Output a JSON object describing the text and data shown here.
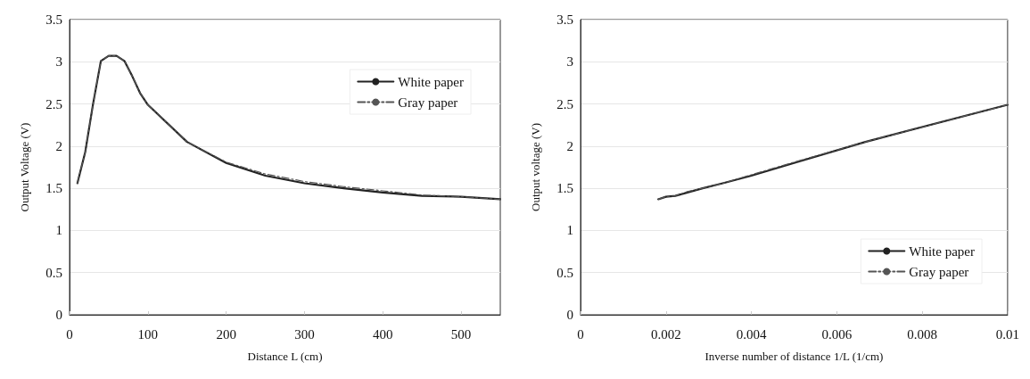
{
  "chart_data": [
    {
      "type": "line",
      "xlabel": "Distance L (cm)",
      "ylabel": "Output Voltage (V)",
      "xlim": [
        0,
        550
      ],
      "xticks": [
        0,
        100,
        200,
        300,
        400,
        500
      ],
      "ylim": [
        0,
        3.5
      ],
      "yticks": [
        0,
        0.5,
        1,
        1.5,
        2,
        2.5,
        3,
        3.5
      ],
      "grid": "y",
      "legend": "top right",
      "marker": "none",
      "series": [
        {
          "name": "White paper",
          "color": "#222222",
          "line_style": "solid",
          "x": [
            10,
            20,
            30,
            40,
            50,
            60,
            70,
            80,
            90,
            100,
            150,
            200,
            250,
            300,
            350,
            400,
            450,
            500,
            550
          ],
          "values": [
            1.56,
            1.93,
            2.5,
            3.01,
            3.07,
            3.07,
            3.01,
            2.83,
            2.63,
            2.49,
            2.05,
            1.8,
            1.65,
            1.56,
            1.5,
            1.45,
            1.41,
            1.4,
            1.37
          ]
        },
        {
          "name": "Gray paper",
          "color": "#555555",
          "line_style": "dashed",
          "x": [
            10,
            20,
            30,
            40,
            50,
            60,
            70,
            80,
            90,
            100,
            150,
            200,
            250,
            300,
            350,
            400,
            450,
            500,
            550
          ],
          "values": [
            1.56,
            1.93,
            2.5,
            3.01,
            3.07,
            3.07,
            3.01,
            2.83,
            2.63,
            2.49,
            2.05,
            1.81,
            1.67,
            1.58,
            1.52,
            1.47,
            1.42,
            1.4,
            1.37
          ]
        }
      ]
    },
    {
      "type": "line",
      "xlabel": "Inverse number of distance 1/L (1/cm)",
      "ylabel": "Output voltage (V)",
      "xlim": [
        0,
        0.01
      ],
      "xticks": [
        0,
        0.002,
        0.004,
        0.006,
        0.008,
        0.01
      ],
      "ylim": [
        0,
        3.5
      ],
      "yticks": [
        0,
        0.5,
        1,
        1.5,
        2,
        2.5,
        3,
        3.5
      ],
      "grid": "y",
      "legend": "bottom right",
      "marker": "none",
      "series": [
        {
          "name": "White paper",
          "color": "#222222",
          "line_style": "solid",
          "x": [
            0.00182,
            0.002,
            0.00222,
            0.0025,
            0.00286,
            0.00333,
            0.004,
            0.005,
            0.00667,
            0.01
          ],
          "values": [
            1.37,
            1.4,
            1.41,
            1.45,
            1.5,
            1.56,
            1.65,
            1.8,
            2.05,
            2.49
          ]
        },
        {
          "name": "Gray paper",
          "color": "#555555",
          "line_style": "dashed",
          "x": [
            0.00182,
            0.002,
            0.00222,
            0.0025,
            0.00286,
            0.00333,
            0.004,
            0.005,
            0.00667,
            0.01
          ],
          "values": [
            1.37,
            1.4,
            1.41,
            1.46,
            1.5,
            1.56,
            1.66,
            1.81,
            2.05,
            2.49
          ]
        }
      ]
    }
  ]
}
